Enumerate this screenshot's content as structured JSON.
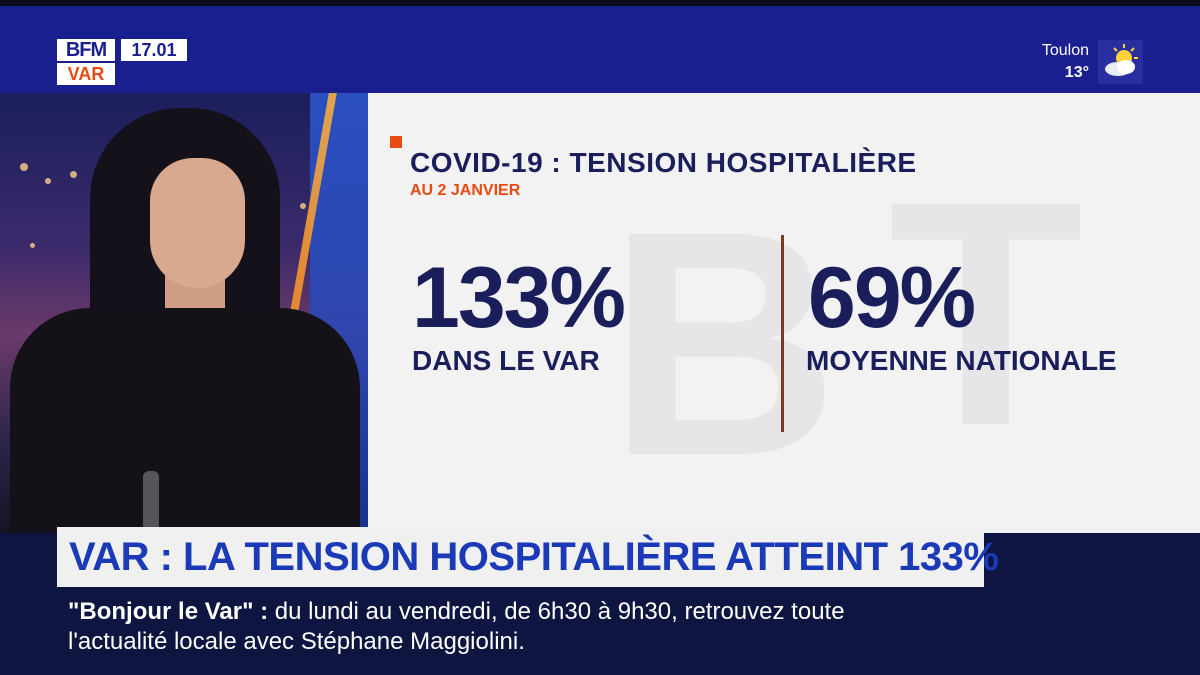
{
  "channel": {
    "logo_top": "BFM",
    "logo_bottom": "VAR",
    "time": "17.01"
  },
  "weather": {
    "city": "Toulon",
    "temperature": "13°",
    "icon": "sun-cloud-icon"
  },
  "graphic": {
    "title": "COVID-19 : TENSION HOSPITALIÈRE",
    "subtitle": "AU 2 JANVIER",
    "stats": [
      {
        "value": "133%",
        "label": "DANS LE VAR"
      },
      {
        "value": "69%",
        "label": "MOYENNE NATIONALE"
      }
    ],
    "accent_color": "#e84a12",
    "text_color": "#1a1f5c"
  },
  "headline": {
    "text": "VAR : LA TENSION HOSPITALIÈRE ATTEINT 133%"
  },
  "ticker": {
    "label": "\"Bonjour le Var\" :",
    "line1": "du lundi au vendredi, de 6h30 à 9h30, retrouvez toute",
    "line2": "l'actualité locale avec Stéphane Maggiolini."
  }
}
